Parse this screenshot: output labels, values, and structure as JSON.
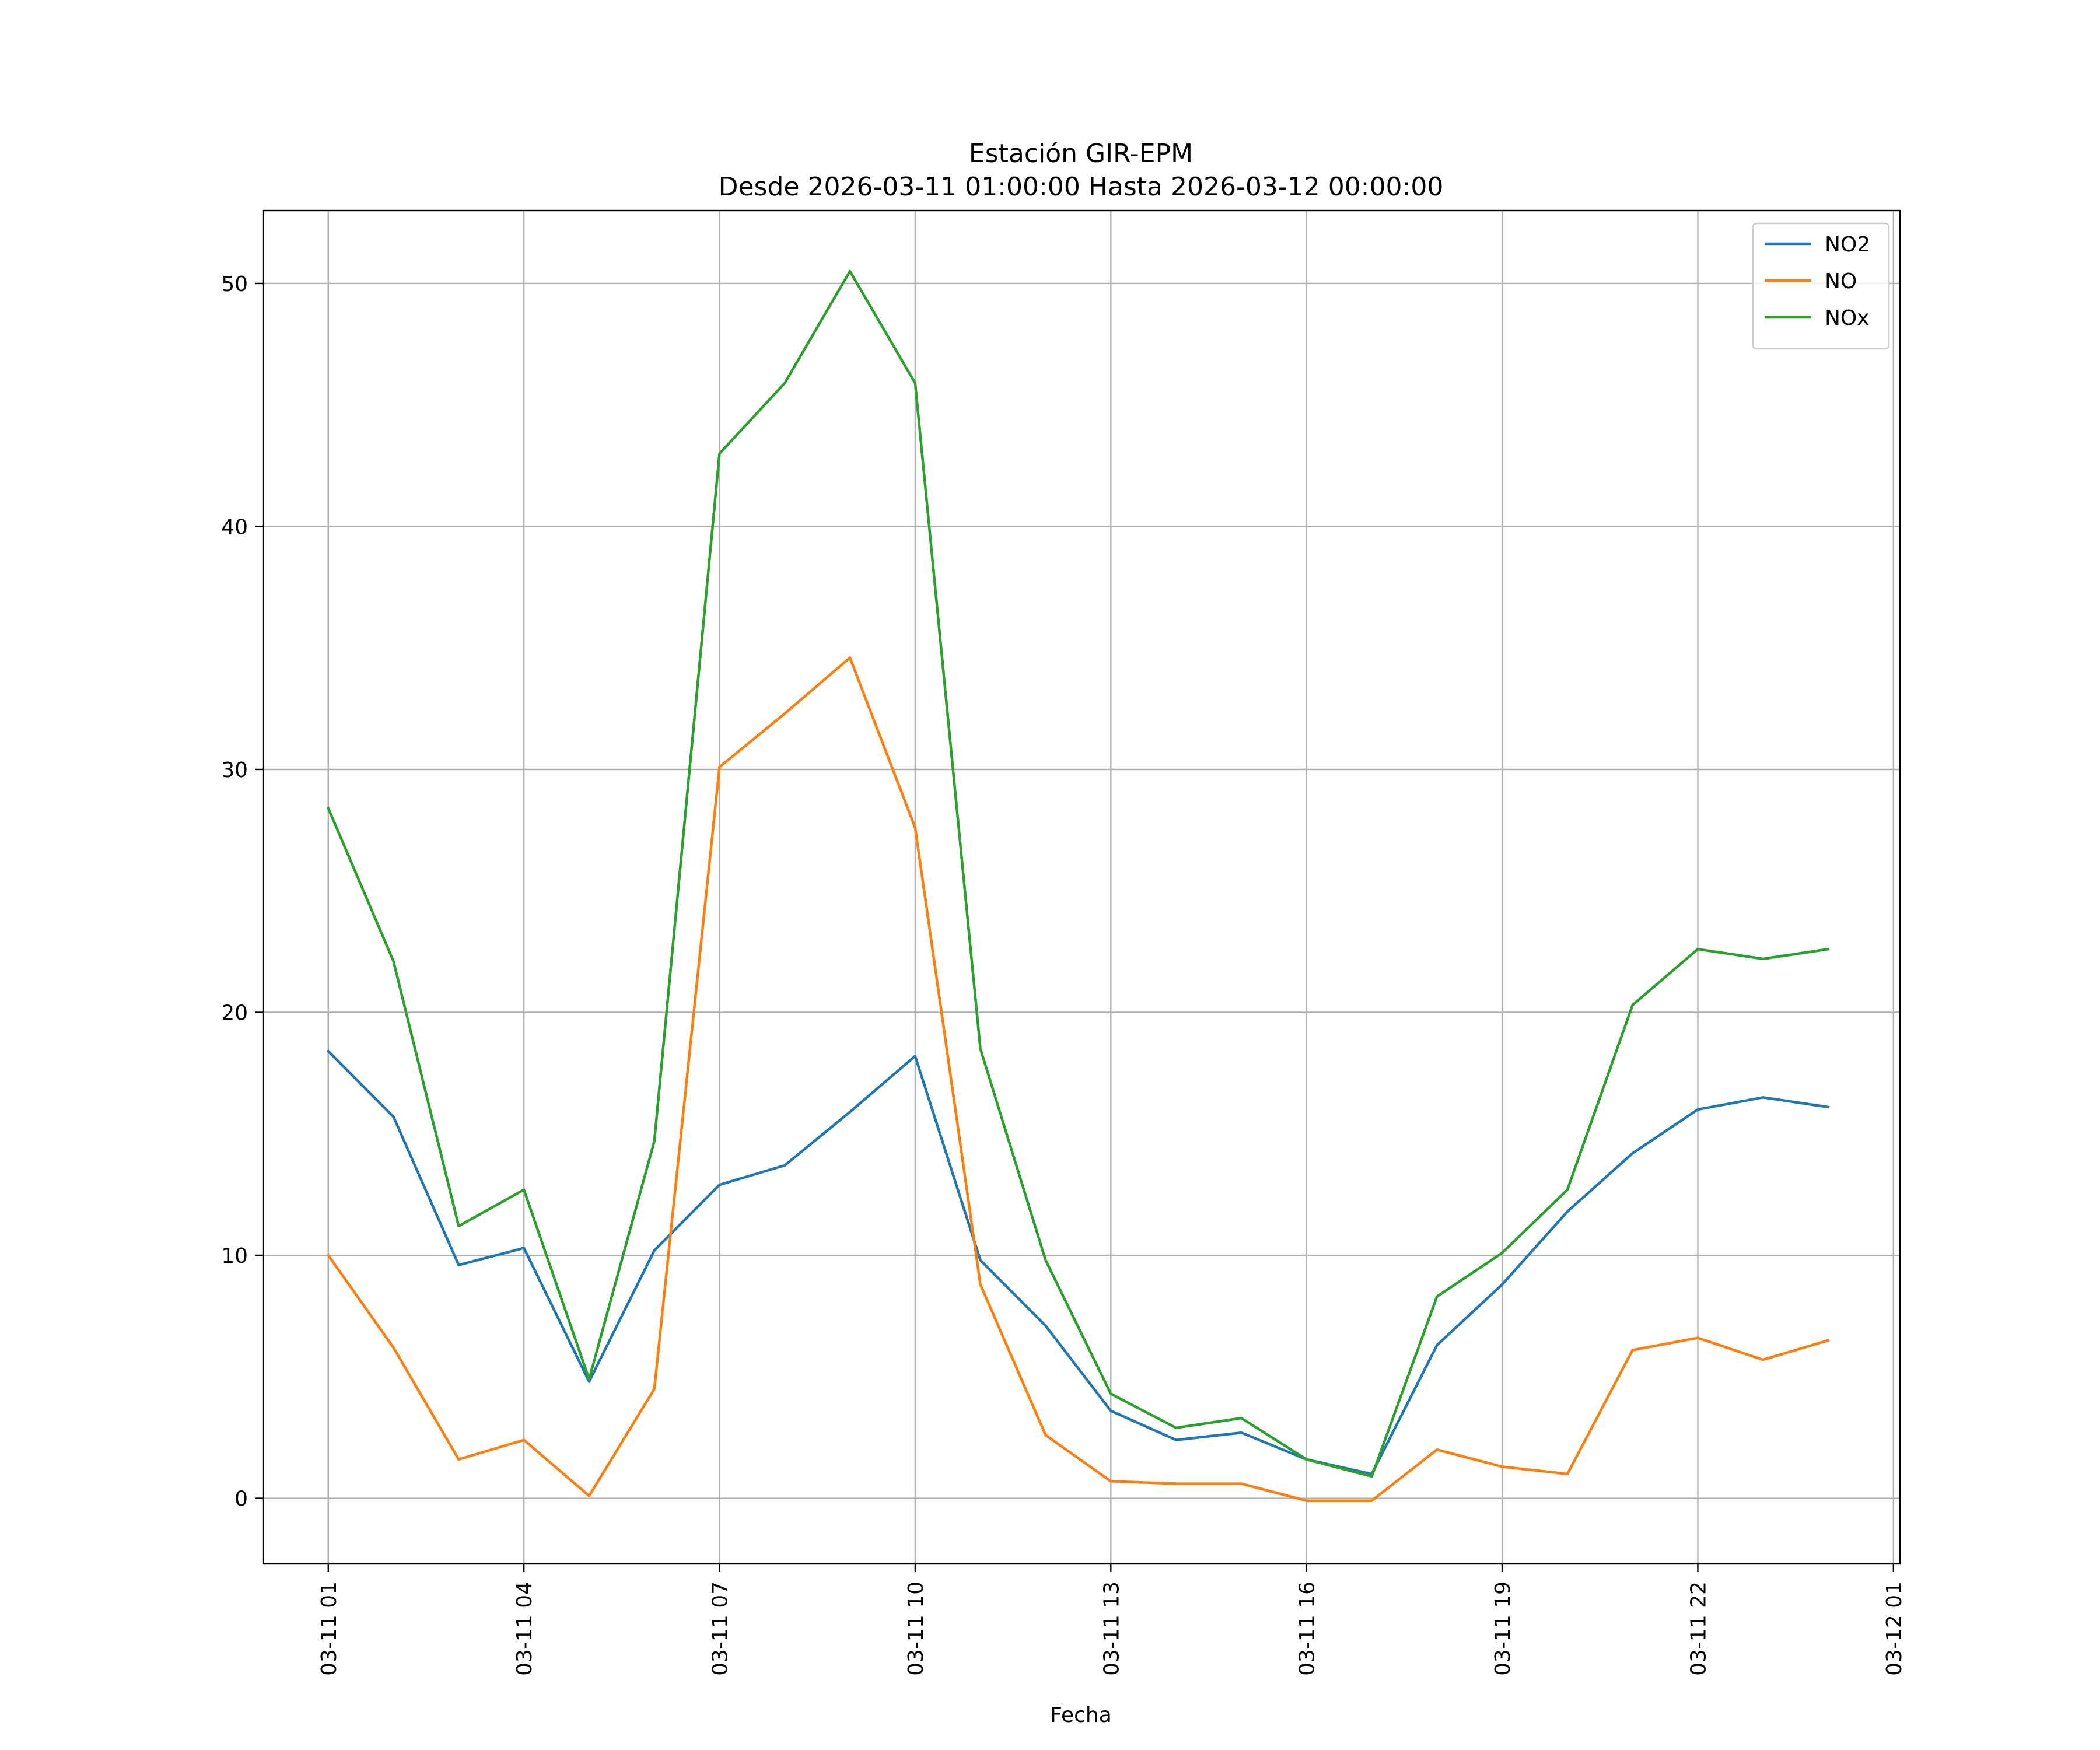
{
  "chart_data": {
    "type": "line",
    "title": "Estación GIR-EPM",
    "subtitle": "Desde 2026-03-11 01:00:00 Hasta 2026-03-12 00:00:00",
    "xlabel": "Fecha",
    "ylabel": "",
    "grid": true,
    "legend_position": "top-right",
    "x": [
      "2026-03-11 01:00",
      "2026-03-11 02:00",
      "2026-03-11 03:00",
      "2026-03-11 04:00",
      "2026-03-11 05:00",
      "2026-03-11 06:00",
      "2026-03-11 07:00",
      "2026-03-11 08:00",
      "2026-03-11 09:00",
      "2026-03-11 10:00",
      "2026-03-11 11:00",
      "2026-03-11 12:00",
      "2026-03-11 13:00",
      "2026-03-11 14:00",
      "2026-03-11 15:00",
      "2026-03-11 16:00",
      "2026-03-11 17:00",
      "2026-03-11 18:00",
      "2026-03-11 19:00",
      "2026-03-11 20:00",
      "2026-03-11 21:00",
      "2026-03-11 22:00",
      "2026-03-11 23:00",
      "2026-03-12 00:00"
    ],
    "xlim": [
      "2026-03-11 00:00",
      "2026-03-12 01:06"
    ],
    "ylim": [
      -2.7,
      53.0
    ],
    "x_ticks": [
      "2026-03-11 01:00",
      "2026-03-11 04:00",
      "2026-03-11 07:00",
      "2026-03-11 10:00",
      "2026-03-11 13:00",
      "2026-03-11 16:00",
      "2026-03-11 19:00",
      "2026-03-11 22:00",
      "2026-03-12 01:00"
    ],
    "x_tick_labels": [
      "03-11 01",
      "03-11 04",
      "03-11 07",
      "03-11 10",
      "03-11 13",
      "03-11 16",
      "03-11 19",
      "03-11 22",
      "03-12 01"
    ],
    "y_ticks": [
      0,
      10,
      20,
      30,
      40,
      50
    ],
    "y_tick_labels": [
      "0",
      "10",
      "20",
      "30",
      "40",
      "50"
    ],
    "series": [
      {
        "name": "NO2",
        "color": "#1f77b4",
        "values": [
          18.4,
          15.7,
          9.6,
          10.3,
          4.8,
          10.2,
          12.9,
          13.7,
          15.9,
          18.2,
          9.8,
          7.1,
          3.6,
          2.4,
          2.7,
          1.6,
          1.0,
          6.3,
          8.8,
          11.8,
          14.2,
          16.0,
          16.5,
          16.1
        ]
      },
      {
        "name": "NO",
        "color": "#ff7f0e",
        "values": [
          10.0,
          6.2,
          1.6,
          2.4,
          0.1,
          4.5,
          30.1,
          32.3,
          34.6,
          27.6,
          8.8,
          2.6,
          0.7,
          0.6,
          0.6,
          -0.1,
          -0.1,
          2.0,
          1.3,
          1.0,
          6.1,
          6.6,
          5.7,
          6.5
        ]
      },
      {
        "name": "NOx",
        "color": "#2ca02c",
        "values": [
          28.4,
          22.1,
          11.2,
          12.7,
          4.9,
          14.7,
          43.0,
          45.9,
          50.5,
          45.9,
          18.5,
          9.8,
          4.3,
          2.9,
          3.3,
          1.6,
          0.9,
          8.3,
          10.1,
          12.7,
          20.3,
          22.6,
          22.2,
          22.6
        ]
      }
    ]
  }
}
